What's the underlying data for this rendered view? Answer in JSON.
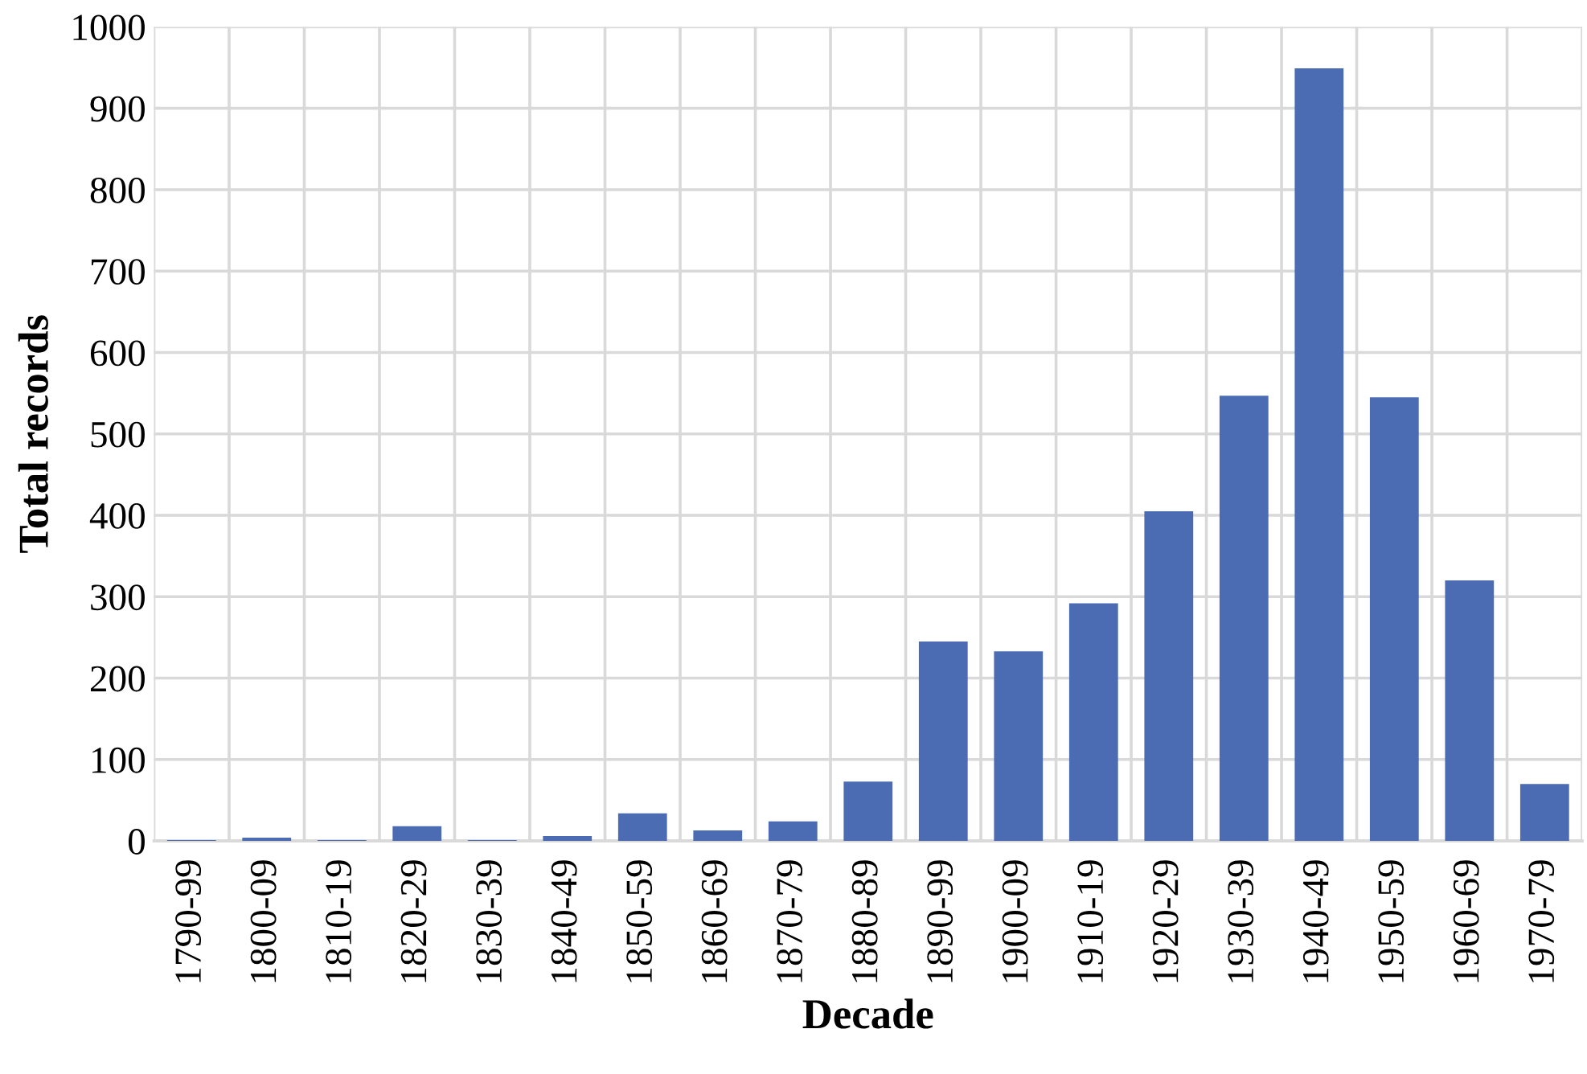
{
  "chart_data": {
    "type": "bar",
    "xlabel": "Decade",
    "ylabel": "Total records",
    "categories": [
      "1790-99",
      "1800-09",
      "1810-19",
      "1820-29",
      "1830-39",
      "1840-49",
      "1850-59",
      "1860-69",
      "1870-79",
      "1880-89",
      "1890-99",
      "1900-09",
      "1910-19",
      "1920-29",
      "1930-39",
      "1940-49",
      "1950-59",
      "1960-69",
      "1970-79"
    ],
    "values": [
      1,
      4,
      1,
      18,
      1,
      6,
      34,
      13,
      24,
      73,
      245,
      233,
      292,
      405,
      547,
      949,
      545,
      320,
      70
    ],
    "color": "#4b6cb3",
    "ylim": [
      0,
      1000
    ],
    "yticks": [
      0,
      100,
      200,
      300,
      400,
      500,
      600,
      700,
      800,
      900,
      1000
    ],
    "grid": true
  }
}
